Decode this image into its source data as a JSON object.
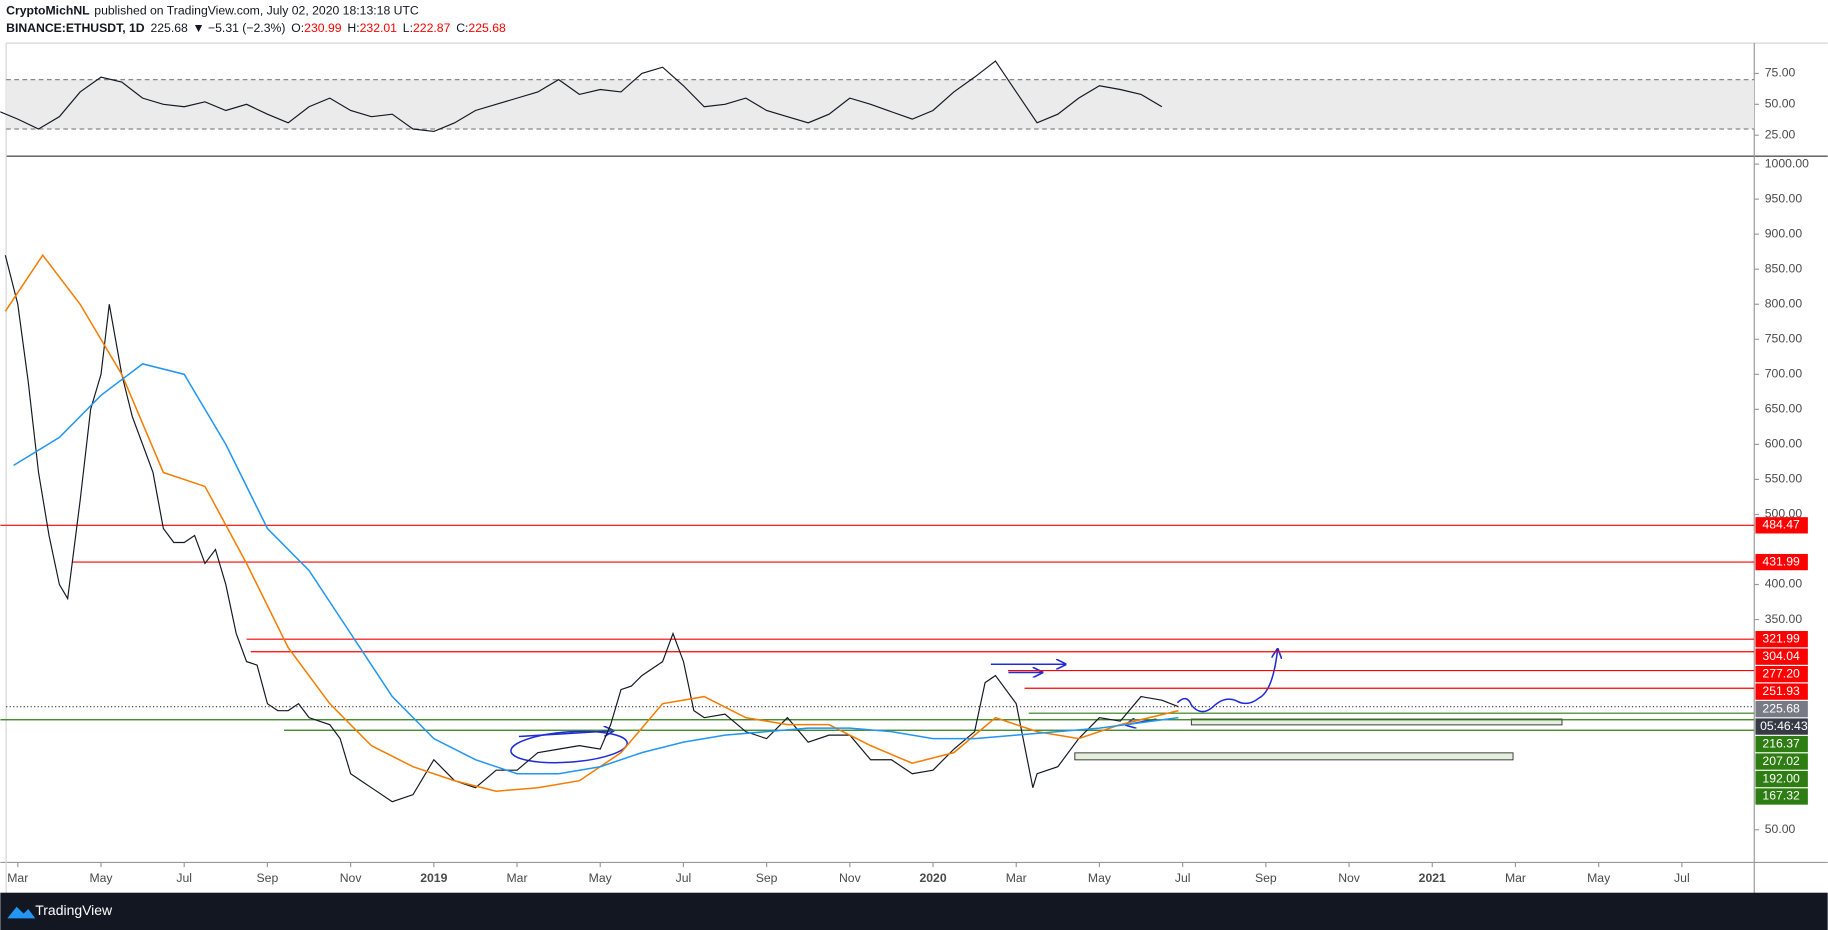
{
  "header": {
    "author": "CryptoMichNL",
    "published": "published on TradingView.com, July 02, 2020 18:13:18 UTC",
    "symbol": "BINANCE:ETHUSDT, 1D",
    "last": "225.68",
    "change": "▼ −5.31 (−2.3%)",
    "ohlc": [
      {
        "label": "O:",
        "value": "230.99"
      },
      {
        "label": "H:",
        "value": "232.01"
      },
      {
        "label": "L:",
        "value": "222.87"
      },
      {
        "label": "C:",
        "value": "225.68"
      }
    ]
  },
  "footer": {
    "brand": "TradingView"
  },
  "chart_data": {
    "type": "line",
    "xlim": [
      -0.42,
      41.74
    ],
    "xticks": [
      {
        "value": 0,
        "label": "Mar"
      },
      {
        "value": 2,
        "label": "May"
      },
      {
        "value": 4,
        "label": "Jul"
      },
      {
        "value": 6,
        "label": "Sep"
      },
      {
        "value": 8,
        "label": "Nov"
      },
      {
        "value": 10,
        "label": "2019"
      },
      {
        "value": 12,
        "label": "Mar"
      },
      {
        "value": 14,
        "label": "May"
      },
      {
        "value": 16,
        "label": "Jul"
      },
      {
        "value": 18,
        "label": "Sep"
      },
      {
        "value": 20,
        "label": "Nov"
      },
      {
        "value": 22,
        "label": "2020"
      },
      {
        "value": 24,
        "label": "Mar"
      },
      {
        "value": 26,
        "label": "May"
      },
      {
        "value": 28,
        "label": "Jul"
      },
      {
        "value": 30,
        "label": "Sep"
      },
      {
        "value": 32,
        "label": "Nov"
      },
      {
        "value": 34,
        "label": "2021"
      },
      {
        "value": 36,
        "label": "Mar"
      },
      {
        "value": 38,
        "label": "May"
      },
      {
        "value": 40,
        "label": "Jul"
      }
    ],
    "ylim": [
      3.4,
      1008
    ],
    "yticks": [
      {
        "value": 1000,
        "label": "1000.00"
      },
      {
        "value": 950,
        "label": "950.00"
      },
      {
        "value": 900,
        "label": "900.00"
      },
      {
        "value": 850,
        "label": "850.00"
      },
      {
        "value": 800,
        "label": "800.00"
      },
      {
        "value": 750,
        "label": "750.00"
      },
      {
        "value": 700,
        "label": "700.00"
      },
      {
        "value": 650,
        "label": "650.00"
      },
      {
        "value": 600,
        "label": "600.00"
      },
      {
        "value": 550,
        "label": "550.00"
      },
      {
        "value": 500,
        "label": "500.00"
      },
      {
        "value": 400,
        "label": "400.00"
      },
      {
        "value": 350,
        "label": "350.00"
      },
      {
        "value": 50,
        "label": "50.00"
      }
    ],
    "series": [
      {
        "color": "#131722",
        "x": [
          -0.3,
          0,
          0.25,
          0.5,
          0.75,
          1,
          1.2,
          1.5,
          1.75,
          2,
          2.2,
          2.5,
          2.75,
          3,
          3.25,
          3.5,
          3.75,
          4,
          4.25,
          4.5,
          4.75,
          5,
          5.25,
          5.5,
          5.75,
          6,
          6.25,
          6.5,
          6.75,
          7,
          7.25,
          7.5,
          7.75,
          8,
          8.25,
          8.5,
          9,
          9.5,
          10,
          10.5,
          11,
          11.5,
          12,
          12.5,
          13,
          13.5,
          14,
          14.25,
          14.5,
          14.75,
          15,
          15.5,
          15.75,
          16,
          16.25,
          16.5,
          17,
          17.5,
          18,
          18.5,
          19,
          19.5,
          20,
          20.5,
          21,
          21.5,
          22,
          22.5,
          23,
          23.25,
          23.5,
          24,
          24.4,
          24.5,
          25,
          25.5,
          26,
          26.5,
          27,
          27.5,
          27.9
        ],
        "values": [
          870,
          800,
          690,
          560,
          470,
          400,
          380,
          520,
          650,
          700,
          800,
          700,
          640,
          600,
          560,
          480,
          460,
          460,
          470,
          430,
          450,
          400,
          330,
          290,
          285,
          230,
          220,
          220,
          230,
          210,
          205,
          200,
          180,
          130,
          120,
          110,
          90,
          100,
          150,
          120,
          110,
          135,
          135,
          160,
          165,
          170,
          165,
          200,
          250,
          255,
          270,
          290,
          330,
          290,
          220,
          210,
          215,
          190,
          180,
          210,
          175,
          185,
          185,
          150,
          150,
          130,
          135,
          165,
          190,
          260,
          270,
          230,
          110,
          130,
          140,
          180,
          210,
          205,
          240,
          235,
          225.68
        ]
      },
      {
        "color": "#f57c00",
        "x": [
          -0.3,
          0.6,
          1.5,
          2.5,
          3.5,
          4.5,
          5.5,
          6.5,
          7.5,
          8.5,
          9.5,
          10.5,
          11.5,
          12.5,
          13.5,
          14.5,
          15.5,
          16.5,
          17.5,
          18.5,
          19.5,
          20.5,
          21.5,
          22.5,
          23.5,
          24.5,
          25.5,
          26.5,
          27.9
        ],
        "values": [
          790,
          870,
          800,
          700,
          560,
          540,
          430,
          310,
          230,
          170,
          140,
          120,
          105,
          110,
          120,
          160,
          230,
          240,
          210,
          200,
          200,
          170,
          145,
          160,
          210,
          190,
          180,
          200,
          220
        ]
      },
      {
        "color": "#2196f3",
        "x": [
          -0.1,
          1,
          2,
          3,
          4,
          5,
          6,
          7,
          8,
          9,
          10,
          11,
          12,
          13,
          14,
          15,
          16,
          17,
          18,
          19,
          20,
          21,
          22,
          23,
          24,
          25,
          26,
          27.9
        ],
        "values": [
          570,
          610,
          670,
          715,
          700,
          600,
          480,
          420,
          330,
          240,
          180,
          150,
          130,
          130,
          140,
          160,
          175,
          185,
          190,
          195,
          195,
          190,
          180,
          180,
          185,
          190,
          195,
          210
        ]
      }
    ],
    "levels": [
      {
        "value": 484.47,
        "label": "484.47",
        "color": "#ff0000",
        "from": -0.42
      },
      {
        "value": 431.99,
        "label": "431.99",
        "color": "#ff0000",
        "from": 1.3
      },
      {
        "value": 321.99,
        "label": "321.99",
        "color": "#ff0000",
        "from": 5.5
      },
      {
        "value": 304.04,
        "label": "304.04",
        "color": "#ff0000",
        "from": 5.6
      },
      {
        "value": 277.2,
        "label": "277.20",
        "color": "#ff0000",
        "from": 23.8
      },
      {
        "value": 251.93,
        "label": "251.93",
        "color": "#ff0000",
        "from": 24.2
      },
      {
        "value": 216.37,
        "label": "216.37",
        "color": "#2e7d12",
        "from": 24.3
      },
      {
        "value": 207.02,
        "label": "207.02",
        "color": "#2e7d12",
        "from": -0.42
      },
      {
        "value": 192,
        "label": "192.00",
        "color": "#2e7d12",
        "from": 6.4
      },
      {
        "value": 167.32,
        "label": "167.32",
        "color": "#2e7d12",
        "from": 41.74
      }
    ],
    "last_price": {
      "value": 225.68,
      "label": "225.68"
    },
    "countdown": "05:46:43",
    "rsi": {
      "ylim": [
        9.9,
        98.6
      ],
      "yticks": [
        {
          "value": 75,
          "label": "75.00"
        },
        {
          "value": 50,
          "label": "50.00"
        },
        {
          "value": 25,
          "label": "25.00"
        }
      ],
      "band": [
        30,
        70
      ],
      "color": "#131722",
      "x": [
        -0.5,
        0,
        0.5,
        1,
        1.5,
        2,
        2.5,
        3,
        3.5,
        4,
        4.5,
        5,
        5.5,
        6,
        6.5,
        7,
        7.5,
        8,
        8.5,
        9,
        9.5,
        10,
        10.5,
        11,
        11.5,
        12,
        12.5,
        13,
        13.5,
        14,
        14.5,
        15,
        15.5,
        16,
        16.5,
        17,
        17.5,
        18,
        18.5,
        19,
        19.5,
        20,
        20.5,
        21,
        21.5,
        22,
        22.5,
        23,
        23.5,
        24,
        24.5,
        25,
        25.5,
        26,
        26.5,
        27,
        27.5
      ],
      "values": [
        45,
        38,
        30,
        40,
        60,
        72,
        68,
        55,
        50,
        48,
        52,
        45,
        50,
        42,
        35,
        48,
        55,
        45,
        40,
        42,
        30,
        28,
        35,
        45,
        50,
        55,
        60,
        70,
        58,
        62,
        60,
        75,
        80,
        65,
        48,
        50,
        55,
        45,
        40,
        35,
        42,
        55,
        50,
        44,
        38,
        45,
        60,
        72,
        85,
        60,
        35,
        42,
        55,
        65,
        62,
        58,
        48
      ]
    }
  }
}
